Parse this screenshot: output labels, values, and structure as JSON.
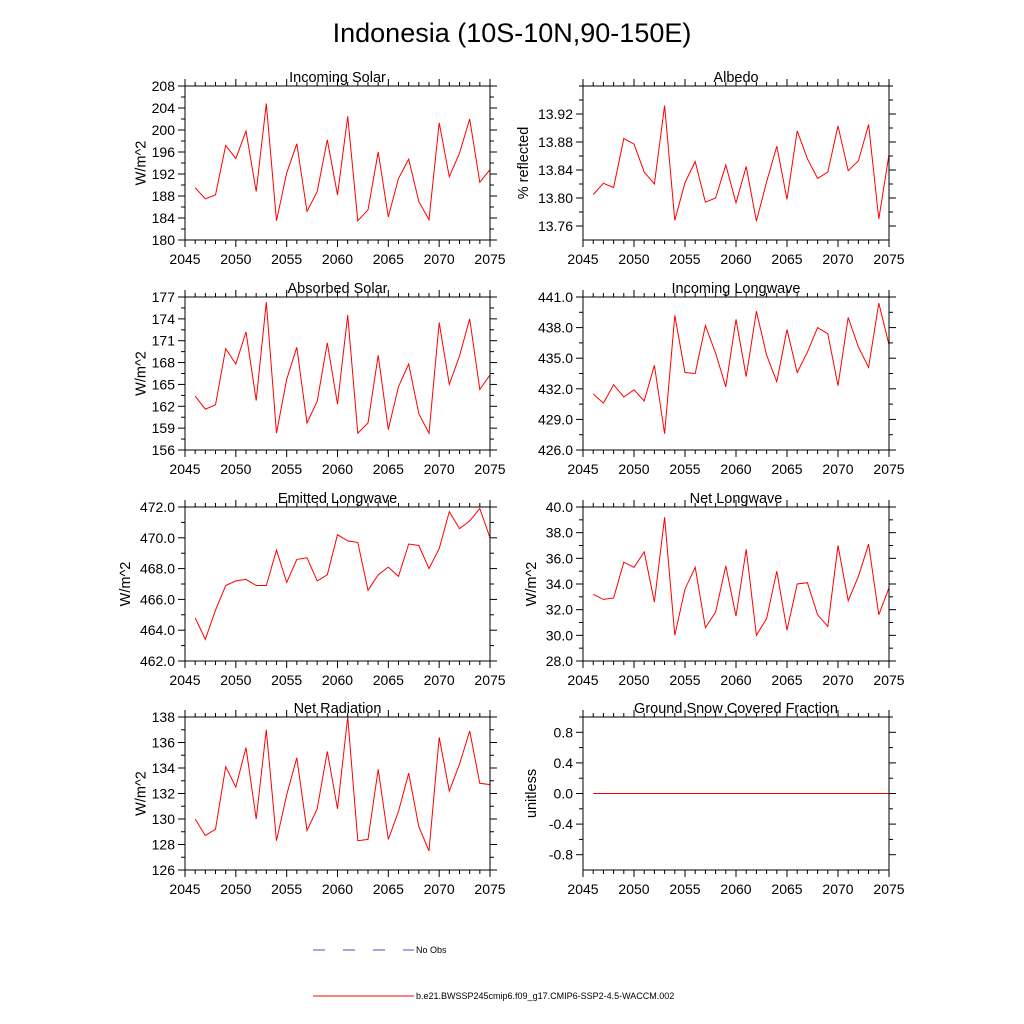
{
  "title": "Indonesia (10S-10N,90-150E)",
  "legend": [
    {
      "label": "No Obs",
      "color": "#4455bb",
      "dash": true
    },
    {
      "label": "b.e21.BWSSP245cmip6.f09_g17.CMIP6-SSP2-4.5-WACCM.002",
      "color": "#ff0000",
      "dash": false
    }
  ],
  "chart_data": [
    {
      "type": "line",
      "title": "Incoming Solar",
      "ylabel": "W/m^2",
      "xlim": [
        2045,
        2075
      ],
      "ylim": [
        180,
        208
      ],
      "yticks": [
        180,
        184,
        188,
        192,
        196,
        200,
        204,
        208
      ],
      "ytick_labels": [
        "180",
        "184",
        "188",
        "192",
        "196",
        "200",
        "204",
        "208"
      ],
      "xticks": [
        2045,
        2050,
        2055,
        2060,
        2065,
        2070,
        2075
      ],
      "xtick_labels": [
        "2045",
        "2050",
        "2055",
        "2060",
        "2065",
        "2070",
        "2075"
      ],
      "color": "#ff0000",
      "x": [
        2046,
        2047,
        2048,
        2049,
        2050,
        2051,
        2052,
        2053,
        2054,
        2055,
        2056,
        2057,
        2058,
        2059,
        2060,
        2061,
        2062,
        2063,
        2064,
        2065,
        2066,
        2067,
        2068,
        2069,
        2070,
        2071,
        2072,
        2073,
        2074,
        2075
      ],
      "values": [
        189.5,
        187.5,
        188.2,
        197.2,
        194.8,
        199.8,
        188.8,
        204.8,
        183.5,
        192.2,
        197.5,
        185.2,
        188.8,
        198.2,
        188.2,
        202.5,
        183.5,
        185.5,
        196.0,
        184.2,
        191.2,
        194.7,
        187.0,
        183.7,
        201.3,
        191.5,
        195.8,
        202.0,
        190.5,
        192.8
      ]
    },
    {
      "type": "line",
      "title": "Albedo",
      "ylabel": "% reflected",
      "xlim": [
        2045,
        2075
      ],
      "ylim": [
        13.74,
        13.96
      ],
      "yticks": [
        13.76,
        13.8,
        13.84,
        13.88,
        13.92
      ],
      "ytick_labels": [
        "13.76",
        "13.80",
        "13.84",
        "13.88",
        "13.92"
      ],
      "xticks": [
        2045,
        2050,
        2055,
        2060,
        2065,
        2070,
        2075
      ],
      "xtick_labels": [
        "2045",
        "2050",
        "2055",
        "2060",
        "2065",
        "2070",
        "2075"
      ],
      "color": "#ff0000",
      "x": [
        2046,
        2047,
        2048,
        2049,
        2050,
        2051,
        2052,
        2053,
        2054,
        2055,
        2056,
        2057,
        2058,
        2059,
        2060,
        2061,
        2062,
        2063,
        2064,
        2065,
        2066,
        2067,
        2068,
        2069,
        2070,
        2071,
        2072,
        2073,
        2074,
        2075
      ],
      "values": [
        13.805,
        13.821,
        13.815,
        13.885,
        13.877,
        13.837,
        13.82,
        13.932,
        13.768,
        13.822,
        13.852,
        13.794,
        13.8,
        13.847,
        13.793,
        13.845,
        13.767,
        13.823,
        13.874,
        13.798,
        13.896,
        13.856,
        13.828,
        13.837,
        13.903,
        13.839,
        13.853,
        13.905,
        13.77,
        13.862
      ]
    },
    {
      "type": "line",
      "title": "Absorbed Solar",
      "ylabel": "W/m^2",
      "xlim": [
        2045,
        2075
      ],
      "ylim": [
        156,
        177
      ],
      "yticks": [
        156,
        159,
        162,
        165,
        168,
        171,
        174,
        177
      ],
      "ytick_labels": [
        "156",
        "159",
        "162",
        "165",
        "168",
        "171",
        "174",
        "177"
      ],
      "xticks": [
        2045,
        2050,
        2055,
        2060,
        2065,
        2070,
        2075
      ],
      "xtick_labels": [
        "2045",
        "2050",
        "2055",
        "2060",
        "2065",
        "2070",
        "2075"
      ],
      "color": "#ff0000",
      "x": [
        2046,
        2047,
        2048,
        2049,
        2050,
        2051,
        2052,
        2053,
        2054,
        2055,
        2056,
        2057,
        2058,
        2059,
        2060,
        2061,
        2062,
        2063,
        2064,
        2065,
        2066,
        2067,
        2068,
        2069,
        2070,
        2071,
        2072,
        2073,
        2074,
        2075
      ],
      "values": [
        163.4,
        161.6,
        162.2,
        169.9,
        167.8,
        172.2,
        162.8,
        176.3,
        158.3,
        165.7,
        170.1,
        159.7,
        162.7,
        170.7,
        162.3,
        174.5,
        158.3,
        159.7,
        169.0,
        158.8,
        164.7,
        167.8,
        161.0,
        158.3,
        173.5,
        165.0,
        168.9,
        174.0,
        164.3,
        166.3
      ]
    },
    {
      "type": "line",
      "title": "Incoming Longwave",
      "ylabel": "",
      "xlim": [
        2045,
        2075
      ],
      "ylim": [
        426.0,
        441.0
      ],
      "yticks": [
        426,
        429,
        432,
        435,
        438,
        441
      ],
      "ytick_labels": [
        "426.0",
        "429.0",
        "432.0",
        "435.0",
        "438.0",
        "441.0"
      ],
      "xticks": [
        2045,
        2050,
        2055,
        2060,
        2065,
        2070,
        2075
      ],
      "xtick_labels": [
        "2045",
        "2050",
        "2055",
        "2060",
        "2065",
        "2070",
        "2075"
      ],
      "color": "#ff0000",
      "x": [
        2046,
        2047,
        2048,
        2049,
        2050,
        2051,
        2052,
        2053,
        2054,
        2055,
        2056,
        2057,
        2058,
        2059,
        2060,
        2061,
        2062,
        2063,
        2064,
        2065,
        2066,
        2067,
        2068,
        2069,
        2070,
        2071,
        2072,
        2073,
        2074,
        2075
      ],
      "values": [
        431.5,
        430.6,
        432.4,
        431.2,
        431.9,
        430.8,
        434.3,
        427.6,
        439.2,
        433.6,
        433.5,
        438.2,
        435.5,
        432.2,
        438.8,
        433.2,
        439.6,
        435.3,
        432.7,
        437.8,
        433.6,
        435.6,
        438.0,
        437.4,
        432.3,
        439.0,
        436.1,
        434.1,
        440.4,
        436.3
      ]
    },
    {
      "type": "line",
      "title": "Emitted Longwave",
      "ylabel": "W/m^2",
      "xlim": [
        2045,
        2075
      ],
      "ylim": [
        462.0,
        472.0
      ],
      "yticks": [
        462,
        464,
        466,
        468,
        470,
        472
      ],
      "ytick_labels": [
        "462.0",
        "464.0",
        "466.0",
        "468.0",
        "470.0",
        "472.0"
      ],
      "xticks": [
        2045,
        2050,
        2055,
        2060,
        2065,
        2070,
        2075
      ],
      "xtick_labels": [
        "2045",
        "2050",
        "2055",
        "2060",
        "2065",
        "2070",
        "2075"
      ],
      "color": "#ff0000",
      "x": [
        2046,
        2047,
        2048,
        2049,
        2050,
        2051,
        2052,
        2053,
        2054,
        2055,
        2056,
        2057,
        2058,
        2059,
        2060,
        2061,
        2062,
        2063,
        2064,
        2065,
        2066,
        2067,
        2068,
        2069,
        2070,
        2071,
        2072,
        2073,
        2074,
        2075
      ],
      "values": [
        464.8,
        463.4,
        465.3,
        466.9,
        467.2,
        467.3,
        466.9,
        466.9,
        469.2,
        467.1,
        468.6,
        468.7,
        467.2,
        467.6,
        470.2,
        469.8,
        469.7,
        466.6,
        467.6,
        468.1,
        467.5,
        469.6,
        469.5,
        468.0,
        469.3,
        471.7,
        470.6,
        471.1,
        471.9,
        470.0
      ]
    },
    {
      "type": "line",
      "title": "Net Longwave",
      "ylabel": "W/m^2",
      "xlim": [
        2045,
        2075
      ],
      "ylim": [
        28.0,
        40.0
      ],
      "yticks": [
        28,
        30,
        32,
        34,
        36,
        38,
        40
      ],
      "ytick_labels": [
        "28.0",
        "30.0",
        "32.0",
        "34.0",
        "36.0",
        "38.0",
        "40.0"
      ],
      "xticks": [
        2045,
        2050,
        2055,
        2060,
        2065,
        2070,
        2075
      ],
      "xtick_labels": [
        "2045",
        "2050",
        "2055",
        "2060",
        "2065",
        "2070",
        "2075"
      ],
      "color": "#ff0000",
      "x": [
        2046,
        2047,
        2048,
        2049,
        2050,
        2051,
        2052,
        2053,
        2054,
        2055,
        2056,
        2057,
        2058,
        2059,
        2060,
        2061,
        2062,
        2063,
        2064,
        2065,
        2066,
        2067,
        2068,
        2069,
        2070,
        2071,
        2072,
        2073,
        2074,
        2075
      ],
      "values": [
        33.2,
        32.8,
        32.9,
        35.7,
        35.3,
        36.5,
        32.6,
        39.2,
        30.0,
        33.6,
        35.3,
        30.6,
        31.8,
        35.4,
        31.5,
        36.7,
        30.0,
        31.3,
        35.0,
        30.4,
        34.0,
        34.1,
        31.6,
        30.7,
        37.0,
        32.7,
        34.6,
        37.1,
        31.6,
        33.7
      ]
    },
    {
      "type": "line",
      "title": "Net Radiation",
      "ylabel": "W/m^2",
      "xlim": [
        2045,
        2075
      ],
      "ylim": [
        126,
        138
      ],
      "yticks": [
        126,
        128,
        130,
        132,
        134,
        136,
        138
      ],
      "ytick_labels": [
        "126",
        "128",
        "130",
        "132",
        "134",
        "136",
        "138"
      ],
      "xticks": [
        2045,
        2050,
        2055,
        2060,
        2065,
        2070,
        2075
      ],
      "xtick_labels": [
        "2045",
        "2050",
        "2055",
        "2060",
        "2065",
        "2070",
        "2075"
      ],
      "color": "#ff0000",
      "x": [
        2046,
        2047,
        2048,
        2049,
        2050,
        2051,
        2052,
        2053,
        2054,
        2055,
        2056,
        2057,
        2058,
        2059,
        2060,
        2061,
        2062,
        2063,
        2064,
        2065,
        2066,
        2067,
        2068,
        2069,
        2070,
        2071,
        2072,
        2073,
        2074,
        2075
      ],
      "values": [
        130.0,
        128.7,
        129.2,
        134.1,
        132.5,
        135.6,
        130.0,
        137.0,
        128.3,
        131.9,
        134.8,
        129.1,
        130.8,
        135.3,
        130.8,
        138.0,
        128.3,
        128.4,
        133.9,
        128.4,
        130.6,
        133.6,
        129.4,
        127.5,
        136.4,
        132.2,
        134.3,
        136.9,
        132.8,
        132.7
      ]
    },
    {
      "type": "line",
      "title": "Ground Snow Covered Fraction",
      "ylabel": "unitless",
      "xlim": [
        2045,
        2075
      ],
      "ylim": [
        -1.0,
        1.0
      ],
      "yticks": [
        -0.8,
        -0.4,
        0.0,
        0.4,
        0.8
      ],
      "ytick_labels": [
        "-0.8",
        "-0.4",
        "0.0",
        "0.4",
        "0.8"
      ],
      "xticks": [
        2045,
        2050,
        2055,
        2060,
        2065,
        2070,
        2075
      ],
      "xtick_labels": [
        "2045",
        "2050",
        "2055",
        "2060",
        "2065",
        "2070",
        "2075"
      ],
      "color": "#ff0000",
      "x": [
        2046,
        2047,
        2048,
        2049,
        2050,
        2051,
        2052,
        2053,
        2054,
        2055,
        2056,
        2057,
        2058,
        2059,
        2060,
        2061,
        2062,
        2063,
        2064,
        2065,
        2066,
        2067,
        2068,
        2069,
        2070,
        2071,
        2072,
        2073,
        2074,
        2075
      ],
      "values": [
        0,
        0,
        0,
        0,
        0,
        0,
        0,
        0,
        0,
        0,
        0,
        0,
        0,
        0,
        0,
        0,
        0,
        0,
        0,
        0,
        0,
        0,
        0,
        0,
        0,
        0,
        0,
        0,
        0,
        0
      ]
    }
  ]
}
